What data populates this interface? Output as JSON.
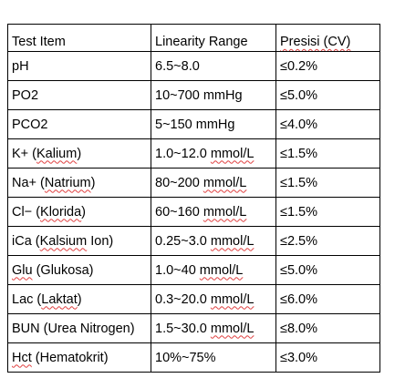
{
  "table": {
    "headers": [
      "Test Item",
      "Linearity Range",
      "Presisi (CV)"
    ],
    "rows": [
      {
        "item_prefix": "pH",
        "item_term": "",
        "item_suffix": "",
        "range_value": "6.5~8.0",
        "range_unit": "",
        "precision": "≤0.2%"
      },
      {
        "item_prefix": "PO2",
        "item_term": "",
        "item_suffix": "",
        "range_value": "10~700 mmHg",
        "range_unit": "",
        "precision": "≤5.0%"
      },
      {
        "item_prefix": "PCO2",
        "item_term": "",
        "item_suffix": "",
        "range_value": "5~150 mmHg",
        "range_unit": "",
        "precision": "≤4.0%"
      },
      {
        "item_prefix": "K+ (",
        "item_term": "Kalium",
        "item_suffix": ")",
        "range_value": "1.0~12.0 ",
        "range_unit": "mmol/L",
        "precision": "≤1.5%"
      },
      {
        "item_prefix": "Na+ (",
        "item_term": "Natrium",
        "item_suffix": ")",
        "range_value": "80~200 ",
        "range_unit": "mmol/L",
        "precision": "≤1.5%"
      },
      {
        "item_prefix": "Cl− (",
        "item_term": "Klorida",
        "item_suffix": ")",
        "range_value": "60~160 ",
        "range_unit": "mmol/L",
        "precision": "≤1.5%"
      },
      {
        "item_prefix": "iCa (",
        "item_term": "Kalsium",
        "item_suffix": " Ion)",
        "range_value": "0.25~3.0 ",
        "range_unit": "mmol/L",
        "precision": "≤2.5%"
      },
      {
        "item_prefix": "",
        "item_term": "Glu",
        "item_suffix": " (Glukosa)",
        "range_value": "1.0~40 ",
        "range_unit": "mmol/L",
        "precision": "≤5.0%"
      },
      {
        "item_prefix": "Lac (",
        "item_term": "Laktat",
        "item_suffix": ")",
        "range_value": "0.3~20.0 ",
        "range_unit": "mmol/L",
        "precision": "≤6.0%"
      },
      {
        "item_prefix": "BUN (Urea Nitrogen)",
        "item_term": "",
        "item_suffix": "",
        "range_value": "1.5~30.0 ",
        "range_unit": "mmol/L",
        "precision": "≤8.0%"
      },
      {
        "item_prefix": "",
        "item_term": "Hct",
        "item_suffix": " (Hematokrit)",
        "range_value": "10%~75%",
        "range_unit": "",
        "precision": "≤3.0%"
      }
    ]
  }
}
